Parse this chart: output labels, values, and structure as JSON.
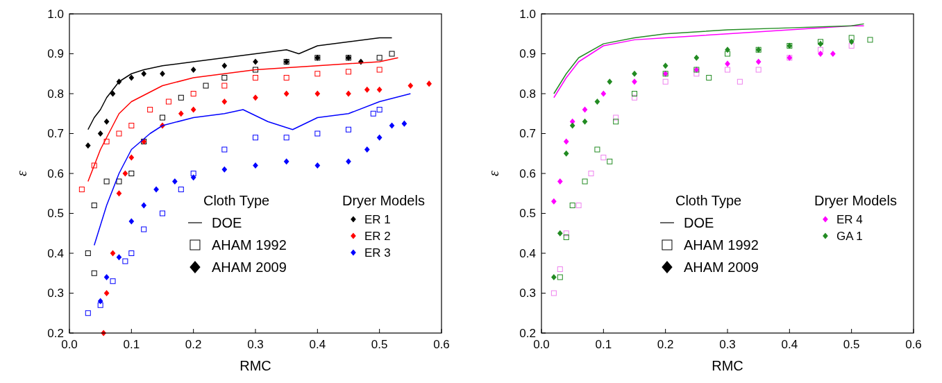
{
  "chart_data": [
    {
      "type": "scatter",
      "xlabel": "RMC",
      "ylabel": "ε",
      "xlim": [
        0,
        0.6
      ],
      "ylim": [
        0.2,
        1.0
      ],
      "xticks": [
        {
          "value": 0,
          "label": "0.0"
        },
        0.1,
        0.2,
        0.3,
        0.4,
        0.5,
        0.6
      ],
      "yticks": [
        0.2,
        0.3,
        0.4,
        0.5,
        0.6,
        0.7,
        0.8,
        0.9,
        {
          "value": 1,
          "label": "1.0"
        }
      ],
      "grid": false,
      "legend": "bottom right",
      "legend_title": "Dryer Models",
      "annotations": [
        "Cloth Type",
        "DOE",
        "AHAM 1992",
        "AHAM 2009"
      ],
      "series": [
        {
          "type": "line",
          "color": "#000000",
          "x": [
            0.03,
            0.04,
            0.05,
            0.06,
            0.07,
            0.08,
            0.1,
            0.12,
            0.15,
            0.2,
            0.25,
            0.3,
            0.35,
            0.37,
            0.4,
            0.45,
            0.5,
            0.52
          ],
          "values": [
            0.71,
            0.74,
            0.76,
            0.79,
            0.81,
            0.83,
            0.85,
            0.86,
            0.87,
            0.88,
            0.89,
            0.9,
            0.91,
            0.9,
            0.92,
            0.93,
            0.94,
            0.94
          ]
        },
        {
          "color": "#000000",
          "marker": "square",
          "x": [
            0.03,
            0.04,
            0.04,
            0.06,
            0.08,
            0.1,
            0.12,
            0.15,
            0.18,
            0.22,
            0.25,
            0.3,
            0.35,
            0.4,
            0.45,
            0.5,
            0.52
          ],
          "values": [
            0.4,
            0.35,
            0.52,
            0.58,
            0.58,
            0.6,
            0.68,
            0.74,
            0.79,
            0.82,
            0.84,
            0.86,
            0.88,
            0.89,
            0.89,
            0.89,
            0.9
          ]
        },
        {
          "name": "ER 1",
          "color": "#000000",
          "marker": "diamond",
          "x": [
            0.03,
            0.05,
            0.06,
            0.07,
            0.08,
            0.1,
            0.12,
            0.15,
            0.2,
            0.25,
            0.3,
            0.35,
            0.4,
            0.45,
            0.47
          ],
          "values": [
            0.67,
            0.7,
            0.73,
            0.8,
            0.83,
            0.84,
            0.85,
            0.85,
            0.86,
            0.87,
            0.88,
            0.88,
            0.89,
            0.89,
            0.88
          ]
        },
        {
          "type": "line",
          "color": "#ff0000",
          "x": [
            0.03,
            0.05,
            0.08,
            0.1,
            0.15,
            0.2,
            0.3,
            0.4,
            0.5,
            0.53
          ],
          "values": [
            0.58,
            0.66,
            0.75,
            0.78,
            0.82,
            0.84,
            0.86,
            0.87,
            0.88,
            0.89
          ]
        },
        {
          "color": "#ff0000",
          "marker": "square",
          "x": [
            0.02,
            0.04,
            0.06,
            0.08,
            0.1,
            0.13,
            0.16,
            0.2,
            0.25,
            0.3,
            0.35,
            0.4,
            0.45,
            0.5
          ],
          "values": [
            0.56,
            0.62,
            0.68,
            0.7,
            0.72,
            0.76,
            0.78,
            0.8,
            0.82,
            0.84,
            0.84,
            0.85,
            0.855,
            0.86
          ]
        },
        {
          "name": "ER 2",
          "color": "#ff0000",
          "marker": "diamond",
          "x": [
            0.055,
            0.06,
            0.07,
            0.08,
            0.09,
            0.1,
            0.12,
            0.15,
            0.18,
            0.2,
            0.25,
            0.3,
            0.35,
            0.4,
            0.45,
            0.48,
            0.5,
            0.55,
            0.58
          ],
          "values": [
            0.2,
            0.3,
            0.4,
            0.55,
            0.6,
            0.64,
            0.68,
            0.72,
            0.75,
            0.76,
            0.78,
            0.79,
            0.8,
            0.8,
            0.8,
            0.81,
            0.81,
            0.82,
            0.825
          ]
        },
        {
          "type": "line",
          "color": "#0000ff",
          "x": [
            0.04,
            0.06,
            0.08,
            0.1,
            0.13,
            0.15,
            0.2,
            0.25,
            0.28,
            0.32,
            0.36,
            0.4,
            0.45,
            0.5,
            0.55
          ],
          "values": [
            0.42,
            0.52,
            0.6,
            0.66,
            0.7,
            0.72,
            0.74,
            0.75,
            0.76,
            0.73,
            0.71,
            0.74,
            0.75,
            0.78,
            0.8
          ]
        },
        {
          "color": "#0000ff",
          "marker": "square",
          "x": [
            0.03,
            0.05,
            0.07,
            0.09,
            0.1,
            0.12,
            0.15,
            0.18,
            0.2,
            0.25,
            0.3,
            0.35,
            0.4,
            0.45,
            0.49,
            0.5
          ],
          "values": [
            0.25,
            0.27,
            0.33,
            0.38,
            0.4,
            0.46,
            0.5,
            0.56,
            0.6,
            0.66,
            0.69,
            0.69,
            0.7,
            0.71,
            0.75,
            0.76
          ]
        },
        {
          "name": "ER 3",
          "color": "#0000ff",
          "marker": "diamond",
          "x": [
            0.05,
            0.06,
            0.08,
            0.1,
            0.12,
            0.14,
            0.17,
            0.2,
            0.25,
            0.3,
            0.35,
            0.4,
            0.45,
            0.48,
            0.5,
            0.52,
            0.54
          ],
          "values": [
            0.28,
            0.34,
            0.39,
            0.48,
            0.52,
            0.56,
            0.58,
            0.59,
            0.61,
            0.62,
            0.63,
            0.62,
            0.63,
            0.66,
            0.69,
            0.72,
            0.725
          ]
        }
      ]
    },
    {
      "type": "scatter",
      "xlabel": "RMC",
      "ylabel": "ε",
      "xlim": [
        0,
        0.6
      ],
      "ylim": [
        0.2,
        1.0
      ],
      "xticks": [
        {
          "value": 0,
          "label": "0.0"
        },
        0.1,
        0.2,
        0.3,
        0.4,
        0.5,
        0.6
      ],
      "yticks": [
        0.2,
        0.3,
        0.4,
        0.5,
        0.6,
        0.7,
        0.8,
        0.9,
        {
          "value": 1,
          "label": "1.0"
        }
      ],
      "grid": false,
      "legend": "bottom right",
      "legend_title": "Dryer Models",
      "annotations": [
        "Cloth Type",
        "DOE",
        "AHAM 1992",
        "AHAM 2009"
      ],
      "series": [
        {
          "type": "line",
          "color": "#ff00ff",
          "x": [
            0.02,
            0.04,
            0.06,
            0.1,
            0.15,
            0.2,
            0.3,
            0.4,
            0.5,
            0.52
          ],
          "values": [
            0.79,
            0.84,
            0.88,
            0.92,
            0.935,
            0.94,
            0.95,
            0.96,
            0.97,
            0.97
          ]
        },
        {
          "color": "#ee82ee",
          "marker": "square",
          "x": [
            0.02,
            0.03,
            0.04,
            0.06,
            0.08,
            0.1,
            0.12,
            0.15,
            0.2,
            0.25,
            0.3,
            0.32,
            0.35,
            0.4,
            0.45,
            0.5
          ],
          "values": [
            0.3,
            0.36,
            0.45,
            0.52,
            0.6,
            0.64,
            0.74,
            0.79,
            0.83,
            0.85,
            0.86,
            0.83,
            0.86,
            0.89,
            0.91,
            0.92
          ]
        },
        {
          "name": "ER 4",
          "color": "#ff00ff",
          "marker": "diamond",
          "x": [
            0.02,
            0.03,
            0.04,
            0.05,
            0.07,
            0.1,
            0.15,
            0.2,
            0.25,
            0.3,
            0.35,
            0.4,
            0.45,
            0.47
          ],
          "values": [
            0.53,
            0.58,
            0.68,
            0.73,
            0.76,
            0.8,
            0.83,
            0.85,
            0.86,
            0.875,
            0.88,
            0.89,
            0.9,
            0.9
          ]
        },
        {
          "type": "line",
          "color": "#228b22",
          "x": [
            0.02,
            0.04,
            0.06,
            0.1,
            0.15,
            0.2,
            0.3,
            0.4,
            0.5,
            0.52
          ],
          "values": [
            0.8,
            0.85,
            0.89,
            0.925,
            0.94,
            0.95,
            0.96,
            0.965,
            0.97,
            0.975
          ]
        },
        {
          "color": "#228b22",
          "marker": "square",
          "x": [
            0.03,
            0.04,
            0.05,
            0.07,
            0.09,
            0.11,
            0.12,
            0.15,
            0.2,
            0.25,
            0.27,
            0.3,
            0.35,
            0.4,
            0.45,
            0.5,
            0.53
          ],
          "values": [
            0.34,
            0.44,
            0.52,
            0.58,
            0.66,
            0.63,
            0.73,
            0.8,
            0.85,
            0.86,
            0.84,
            0.9,
            0.91,
            0.92,
            0.93,
            0.94,
            0.935
          ]
        },
        {
          "name": "GA 1",
          "color": "#228b22",
          "marker": "diamond",
          "x": [
            0.02,
            0.03,
            0.04,
            0.05,
            0.07,
            0.09,
            0.11,
            0.15,
            0.2,
            0.25,
            0.3,
            0.35,
            0.4,
            0.45,
            0.5
          ],
          "values": [
            0.34,
            0.45,
            0.65,
            0.72,
            0.73,
            0.78,
            0.83,
            0.85,
            0.87,
            0.89,
            0.91,
            0.91,
            0.92,
            0.925,
            0.93
          ]
        }
      ]
    }
  ]
}
